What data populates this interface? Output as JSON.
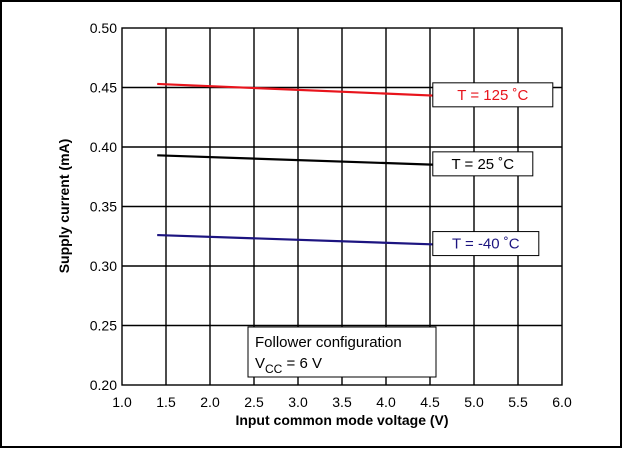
{
  "chart_data": {
    "type": "line",
    "xlabel": "Input common mode voltage (V)",
    "ylabel": "Supply current (mA)",
    "xlim": [
      1.0,
      6.0
    ],
    "ylim": [
      0.2,
      0.5
    ],
    "x_ticks": [
      "1.0",
      "1.5",
      "2.0",
      "2.5",
      "3.0",
      "3.5",
      "4.0",
      "4.5",
      "5.0",
      "5.5",
      "6.0"
    ],
    "y_ticks": [
      "0.20",
      "0.25",
      "0.30",
      "0.35",
      "0.40",
      "0.45",
      "0.50"
    ],
    "grid": true,
    "series": [
      {
        "name": "T = 125 ˚C",
        "color": "#e8141c",
        "x": [
          1.4,
          4.6
        ],
        "y": [
          0.453,
          0.443
        ]
      },
      {
        "name": "T = 25 ˚C",
        "color": "#000000",
        "x": [
          1.4,
          4.6
        ],
        "y": [
          0.393,
          0.385
        ]
      },
      {
        "name": "T = -40 ˚C",
        "color": "#1c1480",
        "x": [
          1.4,
          4.6
        ],
        "y": [
          0.326,
          0.318
        ]
      }
    ],
    "annotation": {
      "line1": "Follower configuration",
      "line2_prefix": "V",
      "line2_sub": "CC",
      "line2_suffix": " = 6 V"
    }
  }
}
